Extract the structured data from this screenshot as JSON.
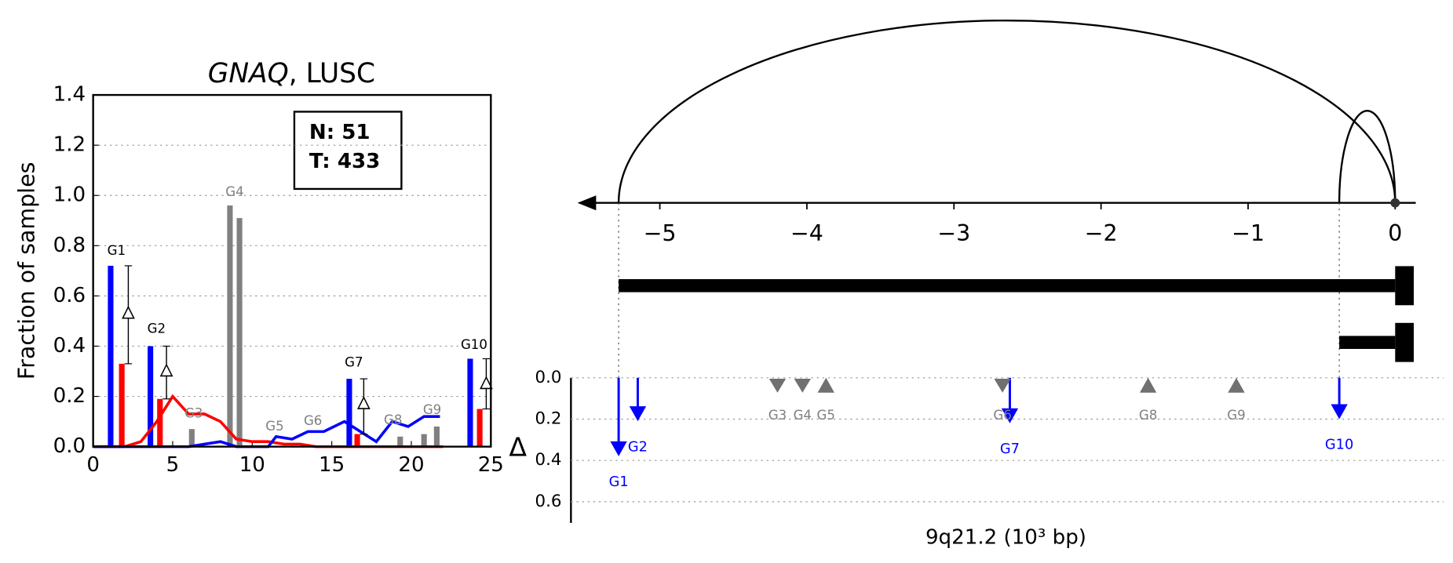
{
  "chart_data": [
    {
      "type": "bar_line",
      "title": [
        "GNAQ",
        ", LUSC"
      ],
      "ylabel": "Fraction of samples",
      "xlim": [
        0,
        25
      ],
      "xticks": [
        0,
        5,
        10,
        15,
        20,
        25
      ],
      "ylim": [
        0,
        1.4
      ],
      "yticks": [
        {
          "value": 0,
          "label": "0.0"
        },
        {
          "value": 0.2,
          "label": "0.2"
        },
        {
          "value": 0.4,
          "label": "0.4"
        },
        {
          "value": 0.6,
          "label": "0.6"
        },
        {
          "value": 0.8,
          "label": "0.8"
        },
        {
          "value": 1.0,
          "label": "1.0"
        },
        {
          "value": 1.2,
          "label": "1.2"
        },
        {
          "value": 1.4,
          "label": "1.4"
        }
      ],
      "grid": true,
      "annotation": [
        "N: 51",
        "T: 433"
      ],
      "bars": [
        {
          "color": "#0000ff",
          "x": [
            1.1,
            3.6,
            16.1,
            23.7
          ],
          "values": [
            0.72,
            0.4,
            0.27,
            0.35
          ]
        },
        {
          "color": "#ff0000",
          "x": [
            1.8,
            4.2,
            16.6,
            24.3
          ],
          "values": [
            0.33,
            0.19,
            0.05,
            0.15
          ]
        },
        {
          "color": "#808080",
          "x": [
            6.2,
            8.6,
            9.2,
            19.3,
            20.8,
            21.6
          ],
          "values": [
            0.07,
            0.96,
            0.91,
            0.04,
            0.05,
            0.08
          ]
        }
      ],
      "lines": [
        {
          "color": "#ff0000",
          "x": [
            0,
            1,
            2,
            3,
            4,
            5,
            6,
            7,
            8,
            9,
            10,
            11,
            12,
            13,
            14,
            15,
            16,
            17,
            18,
            19,
            20,
            21,
            22
          ],
          "values": [
            0,
            0,
            0,
            0.02,
            0.1,
            0.2,
            0.13,
            0.13,
            0.1,
            0.03,
            0.02,
            0.02,
            0.01,
            0.01,
            0,
            0,
            0,
            0,
            0,
            0,
            0,
            0,
            0
          ]
        },
        {
          "color": "#0000ff",
          "x": [
            0,
            1,
            2,
            3,
            4,
            5,
            6,
            7,
            8,
            9,
            10,
            11,
            11.5,
            12.5,
            13.5,
            14.5,
            15.8,
            16.8,
            17.8,
            18.8,
            19.8,
            20.8,
            21.8
          ],
          "values": [
            0,
            0,
            0,
            0,
            0,
            0,
            0,
            0.01,
            0.02,
            0,
            0,
            0,
            0.04,
            0.03,
            0.06,
            0.06,
            0.1,
            0.06,
            0.02,
            0.1,
            0.08,
            0.12,
            0.12
          ]
        }
      ],
      "deltas": {
        "x": [
          1.8,
          4.2,
          16.6,
          24.3
        ],
        "low": [
          0.33,
          0.19,
          0.05,
          0.15
        ],
        "high": [
          0.72,
          0.4,
          0.27,
          0.35
        ],
        "values": [
          0.53,
          0.3,
          0.17,
          0.25
        ]
      },
      "group_labels": [
        "G1",
        "G2",
        "G3",
        "G4",
        "G5",
        "G6",
        "G7",
        "G8",
        "G9",
        "G10"
      ]
    },
    {
      "type": "genome_track",
      "xlabel": "9q21.2 (10³ bp)",
      "ylabel": "Δ",
      "xlim": [
        -5.56,
        0.14
      ],
      "xticks": [
        {
          "value": -5,
          "label": "−5"
        },
        {
          "value": -4,
          "label": "−4"
        },
        {
          "value": -3,
          "label": "−3"
        },
        {
          "value": -2,
          "label": "−2"
        },
        {
          "value": -1,
          "label": "−1"
        },
        0
      ],
      "ylim": [
        0,
        0.7
      ],
      "yticks": [
        {
          "value": 0,
          "label": "0.0"
        },
        {
          "value": 0.2,
          "label": "0.2"
        },
        {
          "value": 0.4,
          "label": "0.4"
        },
        {
          "value": 0.6,
          "label": "0.6"
        }
      ],
      "arcs": [
        {
          "start": -5.28,
          "end": 0
        },
        {
          "start": -0.38,
          "end": 0
        }
      ],
      "transcripts": [
        {
          "start": -5.28,
          "end": 0
        },
        {
          "start": -0.38,
          "end": 0
        }
      ],
      "arrows": [
        {
          "label": "G1",
          "x": -5.28,
          "value": 0.38,
          "color": "#0000ff"
        },
        {
          "label": "G2",
          "x": -5.15,
          "value": 0.21,
          "color": "#0000ff"
        },
        {
          "label": "G7",
          "x": -2.62,
          "value": 0.22,
          "color": "#0000ff"
        },
        {
          "label": "G10",
          "x": -0.38,
          "value": 0.2,
          "color": "#0000ff"
        }
      ],
      "triangles": [
        {
          "label": "G3",
          "x": -4.2,
          "direction": "down",
          "color": "#707070"
        },
        {
          "label": "G4",
          "x": -4.03,
          "direction": "down",
          "color": "#707070"
        },
        {
          "label": "G5",
          "x": -3.87,
          "direction": "up",
          "color": "#707070"
        },
        {
          "label": "G6",
          "x": -2.67,
          "direction": "down",
          "color": "#707070"
        },
        {
          "label": "G8",
          "x": -1.68,
          "direction": "up",
          "color": "#707070"
        },
        {
          "label": "G9",
          "x": -1.08,
          "direction": "up",
          "color": "#707070"
        }
      ]
    }
  ]
}
